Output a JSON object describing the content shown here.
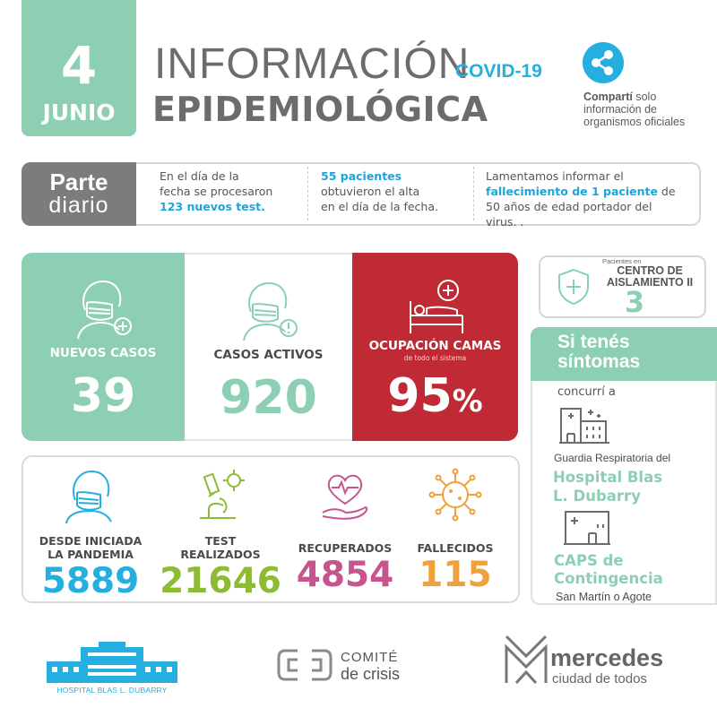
{
  "header": {
    "day": "4",
    "month": "JUNIO",
    "title_line1": "INFORMACIÓN",
    "title_covid": "COVID-19",
    "title_line2": "EPIDEMIOLÓGICA",
    "share_bold": "Compartí",
    "share_rest1": " solo",
    "share_rest2": "información de",
    "share_rest3": "organismos oficiales"
  },
  "parte": {
    "label_line1": "Parte",
    "label_line2": "diario",
    "col1_a": "En el día de la",
    "col1_b": "fecha se procesaron",
    "col1_hl": "123 nuevos test.",
    "col2_hl": "55 pacientes",
    "col2_b": "obtuvieron el alta",
    "col2_c": "en el día de la fecha.",
    "col3_a": "Lamentamos informar el",
    "col3_hl": "fallecimiento de 1 paciente",
    "col3_b": " de",
    "col3_c": "50 años de edad portador del",
    "col3_d": "virus. ."
  },
  "cards": {
    "nuevos_label": "NUEVOS  CASOS",
    "nuevos_value": "39",
    "activos_label": "CASOS ACTIVOS",
    "activos_value": "920",
    "camas_label": "OCUPACIÓN CAMAS",
    "camas_sub": "de todo el sistema",
    "camas_value": "95",
    "camas_unit": "%"
  },
  "stats": {
    "pandemia_label_1": "DESDE INICIADA",
    "pandemia_label_2": "LA PANDEMIA",
    "pandemia_value": "5889",
    "test_label_1": "TEST",
    "test_label_2": "REALIZADOS",
    "test_value": "21646",
    "recuperados_label": "RECUPERADOS",
    "recuperados_value": "4854",
    "fallecidos_label": "FALLECIDOS",
    "fallecidos_value": "115"
  },
  "aislamiento": {
    "small": "Pacientes en",
    "title_1": "CENTRO DE",
    "title_2": "AISLAMIENTO II",
    "value": "3"
  },
  "sintomas": {
    "title_1": "Si tenés",
    "title_2": "síntomas",
    "concurri": "concurrí a",
    "guardia": "Guardia Respiratoria del",
    "hosp_1": "Hospital Blas",
    "hosp_2": "L. Dubarry",
    "caps_1": "CAPS de",
    "caps_2": "Contingencia",
    "caps_addr": "San Martín o Agote"
  },
  "footer": {
    "hospital": "HOSPITAL BLAS L. DUBARRY",
    "comite_1": "COMITÉ",
    "comite_2": "de crisis",
    "mercedes_1": "mercedes",
    "mercedes_2": "ciudad de todos"
  },
  "colors": {
    "green": "#8ccfb3",
    "blue": "#25aee0",
    "red": "#c02a34",
    "olive": "#8dbb34",
    "pink": "#c7538f",
    "orange": "#f0a23a",
    "gray": "#7d7b7c"
  },
  "icons": [
    "share-icon",
    "masked-person-plus-icon",
    "masked-person-alert-icon",
    "hospital-bed-icon",
    "masked-person-icon",
    "microscope-icon",
    "heart-hand-icon",
    "virus-icon",
    "shield-cross-icon",
    "hospital-building-icon",
    "clinic-building-icon"
  ]
}
